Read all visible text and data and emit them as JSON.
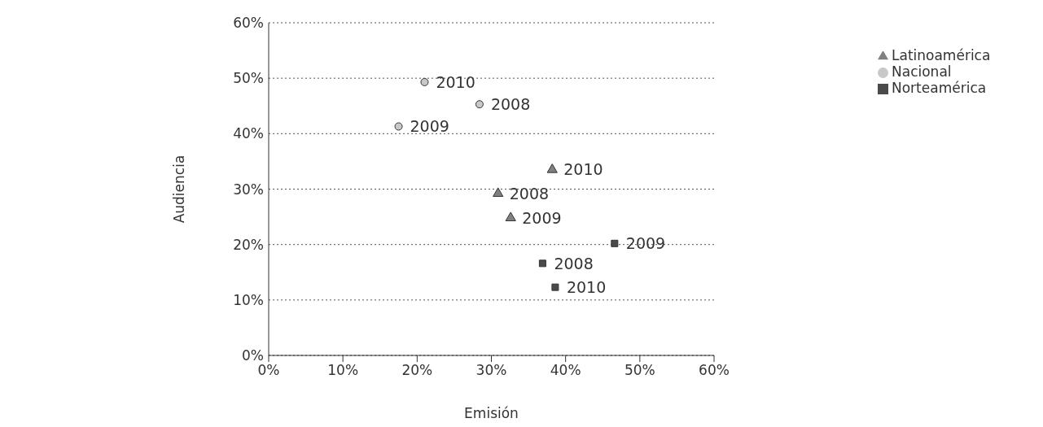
{
  "chart_data": {
    "type": "scatter",
    "xlabel": "Emisión",
    "ylabel": "Audiencia",
    "xlim": [
      0,
      60
    ],
    "ylim": [
      0,
      60
    ],
    "xticks": [
      {
        "value": 0,
        "label": "0%"
      },
      {
        "value": 10,
        "label": "10%"
      },
      {
        "value": 20,
        "label": "20%"
      },
      {
        "value": 30,
        "label": "30%"
      },
      {
        "value": 40,
        "label": "40%"
      },
      {
        "value": 50,
        "label": "50%"
      },
      {
        "value": 60,
        "label": "60%"
      }
    ],
    "yticks": [
      {
        "value": 0,
        "label": "0%"
      },
      {
        "value": 10,
        "label": "10%"
      },
      {
        "value": 20,
        "label": "20%"
      },
      {
        "value": 30,
        "label": "30%"
      },
      {
        "value": 40,
        "label": "40%"
      },
      {
        "value": 50,
        "label": "50%"
      },
      {
        "value": 60,
        "label": "60%"
      }
    ],
    "grid": "y",
    "legend": "top right",
    "series": [
      {
        "name": "Nacional",
        "color": "#c8c8c8",
        "marker": "circle",
        "x": [
          21.0,
          28.4,
          17.5
        ],
        "values": [
          49.3,
          45.3,
          41.3
        ]
      },
      {
        "name": "Latinoamérica",
        "color": "#808080",
        "marker": "triangle",
        "x": [
          38.2,
          30.9,
          32.6
        ],
        "values": [
          33.5,
          29.2,
          24.8
        ]
      },
      {
        "name": "Norteamérica",
        "color": "#4a4a4a",
        "marker": "square",
        "x": [
          46.6,
          36.9,
          38.6
        ],
        "values": [
          20.2,
          16.6,
          12.3
        ]
      }
    ],
    "annotations": [
      {
        "text": "2010",
        "x": 21.0,
        "y": 49.3
      },
      {
        "text": "2008",
        "x": 28.4,
        "y": 45.3
      },
      {
        "text": "2009",
        "x": 17.5,
        "y": 41.3
      },
      {
        "text": "2010",
        "x": 38.2,
        "y": 33.5
      },
      {
        "text": "2008",
        "x": 30.9,
        "y": 29.2
      },
      {
        "text": "2009",
        "x": 32.6,
        "y": 24.8
      },
      {
        "text": "2009",
        "x": 46.6,
        "y": 20.2
      },
      {
        "text": "2008",
        "x": 36.9,
        "y": 16.6
      },
      {
        "text": "2010",
        "x": 38.6,
        "y": 12.3
      }
    ]
  }
}
